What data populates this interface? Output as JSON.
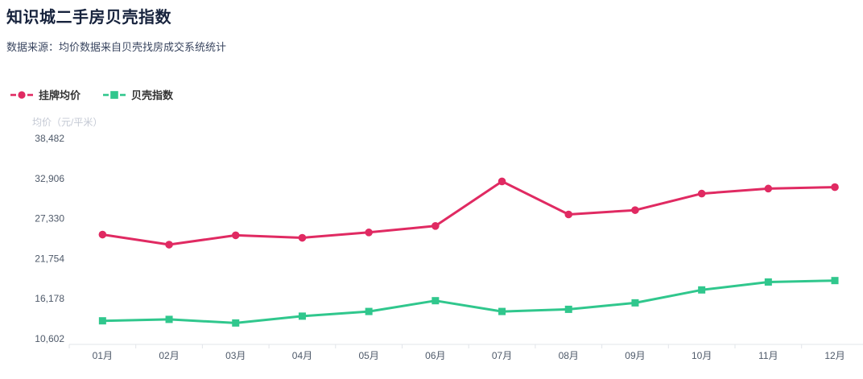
{
  "header": {
    "title": "知识城二手房贝壳指数",
    "subtitle": "数据来源：均价数据来自贝壳找房成交系统统计"
  },
  "legend": {
    "items": [
      {
        "label": "挂牌均价",
        "marker": "circle",
        "color": "#e02a62"
      },
      {
        "label": "贝壳指数",
        "marker": "square",
        "color": "#30c78d"
      }
    ]
  },
  "chart_data": {
    "type": "line",
    "title": "知识城二手房贝壳指数",
    "y_axis_name": "均价（元/平米）",
    "categories": [
      "01月",
      "02月",
      "03月",
      "04月",
      "05月",
      "06月",
      "07月",
      "08月",
      "09月",
      "10月",
      "11月",
      "12月"
    ],
    "series": [
      {
        "name": "挂牌均价",
        "color": "#e02a62",
        "marker": "circle",
        "values": [
          25100,
          23700,
          25000,
          24650,
          25400,
          26300,
          32500,
          27900,
          28500,
          30800,
          31500,
          31700
        ]
      },
      {
        "name": "贝壳指数",
        "color": "#30c78d",
        "marker": "square",
        "values": [
          13100,
          13300,
          12800,
          13750,
          14400,
          15900,
          14400,
          14700,
          15600,
          17400,
          18500,
          18700
        ]
      }
    ],
    "y_ticks": [
      10602,
      16178,
      21754,
      27330,
      32906,
      38482
    ],
    "ylim": [
      10602,
      38482
    ],
    "grid": false,
    "legend_position": "top-left",
    "axis_line_color": "#e2e5ea",
    "axis_label_color": "#4e5969"
  }
}
